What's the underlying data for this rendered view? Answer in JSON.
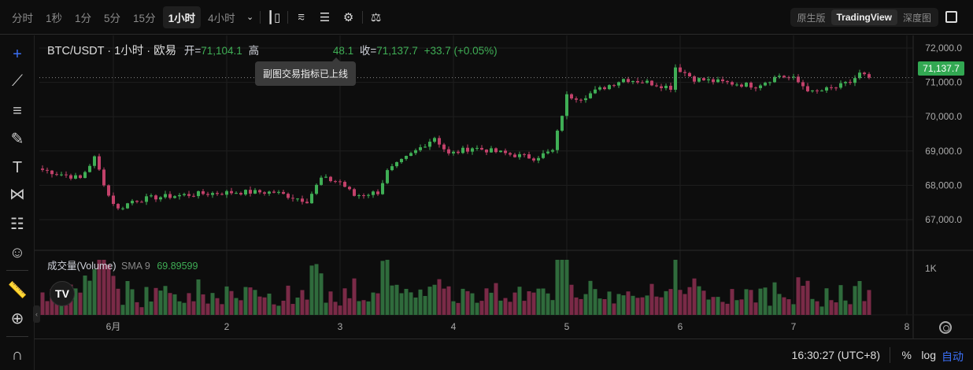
{
  "toolbar": {
    "timeframes": [
      "分时",
      "1秒",
      "1分",
      "5分",
      "15分",
      "1小时",
      "4小时"
    ],
    "active_timeframe": "1小时",
    "more_icon": "chevron-down-icon",
    "icons": [
      "candle-type-icon",
      "indicator-icon",
      "layout-icon",
      "gear-icon",
      "scale-icon"
    ],
    "views": [
      "原生版",
      "TradingView",
      "深度图"
    ],
    "active_view": "TradingView",
    "fullscreen_icon": "fullscreen-icon"
  },
  "left_tools": [
    "crosshair-icon",
    "trend-line-icon",
    "horizontal-lines-icon",
    "brush-icon",
    "text-icon",
    "pattern-icon",
    "fib-icon",
    "emoji-icon",
    "ruler-icon",
    "zoom-in-icon",
    "magnet-icon"
  ],
  "legend": {
    "symbol": "BTC/USDT · 1小时 · 欧易",
    "open_label": "开=",
    "open": "71,104.1",
    "high_label": "高",
    "low_fragment": "48.1",
    "close_label": "收=",
    "close": "71,137.7",
    "change": "+33.7 (+0.05%)"
  },
  "tooltip": "副图交易指标已上线",
  "volume_legend": {
    "name": "成交量(Volume)",
    "sma": "SMA 9",
    "value": "69.89599"
  },
  "logo": "TV",
  "bottom": {
    "clock": "16:30:27 (UTC+8)",
    "percent": "%",
    "log": "log",
    "auto": "自动"
  },
  "colors": {
    "up": "#3fae55",
    "down": "#c2416a",
    "accent": "#3b6ff5",
    "last_price": "#32a852"
  },
  "chart_data": {
    "type": "candlestick",
    "interval": "1小时",
    "y_ticks": [
      "72,000.0",
      "71,000.0",
      "70,000.0",
      "69,000.0",
      "68,000.0",
      "67,000.0"
    ],
    "ylim": [
      66600,
      72300
    ],
    "x_ticks": [
      "6月",
      "2",
      "3",
      "4",
      "5",
      "6",
      "7",
      "8"
    ],
    "last_price": "71,137.7",
    "volume_tick": "1K",
    "price_path": [
      [
        "05-31 09:00",
        68450
      ],
      [
        "05-31 17:00",
        68200
      ],
      [
        "05-31 20:00",
        68800
      ],
      [
        "05-31 23:00",
        67700
      ],
      [
        "06-01 01:00",
        67300
      ],
      [
        "06-01 04:00",
        67550
      ],
      [
        "06-01 09:00",
        67650
      ],
      [
        "06-01 18:00",
        67750
      ],
      [
        "06-02 02:00",
        67800
      ],
      [
        "06-02 10:00",
        67800
      ],
      [
        "06-02 17:00",
        67550
      ],
      [
        "06-02 20:00",
        68200
      ],
      [
        "06-03 00:00",
        68100
      ],
      [
        "06-03 03:00",
        67700
      ],
      [
        "06-03 08:00",
        67800
      ],
      [
        "06-03 10:00",
        68400
      ],
      [
        "06-03 15:00",
        68900
      ],
      [
        "06-03 20:00",
        69400
      ],
      [
        "06-03 23:00",
        68900
      ],
      [
        "06-04 04:00",
        69100
      ],
      [
        "06-04 12:00",
        68900
      ],
      [
        "06-04 17:00",
        68800
      ],
      [
        "06-04 21:00",
        69000
      ],
      [
        "06-05 00:00",
        70600
      ],
      [
        "06-05 03:00",
        70550
      ],
      [
        "06-05 07:00",
        70800
      ],
      [
        "06-05 12:00",
        71100
      ],
      [
        "06-05 17:00",
        71000
      ],
      [
        "06-05 22:00",
        70850
      ],
      [
        "06-05 23:00",
        71450
      ],
      [
        "06-06 03:00",
        71100
      ],
      [
        "06-06 09:00",
        71000
      ],
      [
        "06-06 16:00",
        70900
      ],
      [
        "06-06 21:00",
        71200
      ],
      [
        "06-07 00:00",
        71100
      ],
      [
        "06-07 04:00",
        70700
      ],
      [
        "06-07 09:00",
        70850
      ],
      [
        "06-07 12:00",
        71000
      ],
      [
        "06-07 14:00",
        71250
      ],
      [
        "06-07 16:00",
        71137.7
      ]
    ]
  }
}
